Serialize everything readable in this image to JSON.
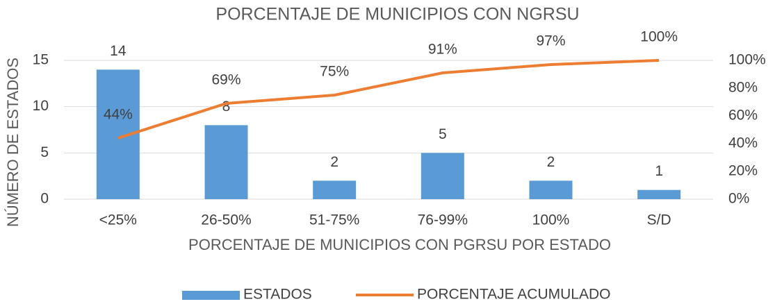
{
  "chart_data": {
    "type": "bar",
    "title": "PORCENTAJE  DE MUNICIPIOS CON NGRSU",
    "x_label": "PORCENTAJE DE MUNICIPIOS CON PGRSU POR ESTADO",
    "y_label": "NÚMERO DE ESTADOS",
    "categories": [
      "<25%",
      "26-50%",
      "51-75%",
      "76-99%",
      "100%",
      "S/D"
    ],
    "series": [
      {
        "name": "ESTADOS",
        "type": "bar",
        "color": "#5b9bd5",
        "values": [
          14,
          8,
          2,
          5,
          2,
          1
        ]
      },
      {
        "name": "PORCENTAJE ACUMULADO",
        "type": "line",
        "axis": "y2",
        "color": "#ed7d31",
        "values": [
          44,
          69,
          75,
          91,
          97,
          100
        ],
        "value_labels": [
          "44%",
          "69%",
          "75%",
          "91%",
          "97%",
          "100%"
        ]
      }
    ],
    "ylim": [
      0,
      15
    ],
    "yticks": [
      0,
      5,
      10,
      15
    ],
    "y2lim": [
      0,
      100
    ],
    "y2ticks": [
      {
        "value": 0,
        "label": "0%"
      },
      {
        "value": 20,
        "label": "20%"
      },
      {
        "value": 40,
        "label": "40%"
      },
      {
        "value": 60,
        "label": "60%"
      },
      {
        "value": 80,
        "label": "80%"
      },
      {
        "value": 100,
        "label": "100%"
      }
    ],
    "grid": true,
    "legend": "bottom"
  }
}
